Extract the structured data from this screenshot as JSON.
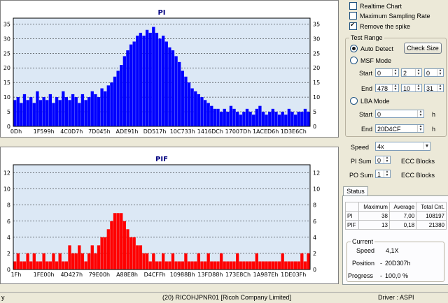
{
  "pi_chart": {
    "title": "PI",
    "y_ticks": [
      "0",
      "5",
      "10",
      "15",
      "20",
      "25",
      "30",
      "35"
    ],
    "x_ticks": [
      "0Dh",
      "1F599h",
      "4C0D7h",
      "7D045h",
      "ADE91h",
      "DD517h",
      "10C733h",
      "1416DCh",
      "17007Dh",
      "1ACED6h",
      "1D3E6Ch"
    ],
    "color": "#0000ff"
  },
  "pif_chart": {
    "title": "PIF",
    "y_ticks": [
      "0",
      "2",
      "4",
      "6",
      "8",
      "10",
      "12"
    ],
    "x_ticks": [
      "1Fh",
      "1FE00h",
      "4D427h",
      "79E00h",
      "A88E8h",
      "D4CFFh",
      "10988Bh",
      "13FD88h",
      "173E8Ch",
      "1A987Eh",
      "1DE03Fh"
    ],
    "color": "#ff0000"
  },
  "chart_data": [
    {
      "type": "bar",
      "title": "PI",
      "x_ticks": [
        "0Dh",
        "1F599h",
        "4C0D7h",
        "7D045h",
        "ADE91h",
        "DD517h",
        "10C733h",
        "1416DCh",
        "17007Dh",
        "1ACED6h",
        "1D3E6Ch"
      ],
      "ylim": [
        0,
        37
      ],
      "series": [
        {
          "values": [
            9,
            10,
            8,
            11,
            9,
            10,
            8,
            12,
            9,
            10,
            9,
            11,
            8,
            10,
            9,
            12,
            10,
            9,
            11,
            10,
            8,
            11,
            9,
            10,
            12,
            11,
            10,
            13,
            12,
            14,
            15,
            17,
            19,
            21,
            24,
            26,
            28,
            29,
            31,
            32,
            31,
            33,
            32,
            34,
            32,
            30,
            31,
            29,
            27,
            26,
            24,
            22,
            19,
            17,
            15,
            13,
            12,
            11,
            10,
            9,
            8,
            7,
            6,
            6,
            5,
            6,
            5,
            7,
            6,
            5,
            4,
            5,
            6,
            5,
            4,
            6,
            7,
            5,
            4,
            5,
            6,
            5,
            4,
            5,
            4,
            6,
            5,
            4,
            5,
            5,
            6,
            5
          ]
        }
      ]
    },
    {
      "type": "bar",
      "title": "PIF",
      "x_ticks": [
        "1Fh",
        "1FE00h",
        "4D427h",
        "79E00h",
        "A88E8h",
        "D4CFFh",
        "10988Bh",
        "13FD88h",
        "173E8Ch",
        "1A987Eh",
        "1DE03Fh"
      ],
      "ylim": [
        0,
        13
      ],
      "series": [
        {
          "values": [
            1,
            2,
            1,
            1,
            2,
            1,
            2,
            1,
            1,
            2,
            1,
            1,
            2,
            1,
            2,
            1,
            1,
            3,
            2,
            2,
            3,
            2,
            1,
            2,
            3,
            2,
            3,
            4,
            4,
            5,
            6,
            7,
            7,
            7,
            6,
            5,
            4,
            4,
            3,
            3,
            2,
            2,
            1,
            2,
            1,
            1,
            2,
            1,
            1,
            2,
            1,
            1,
            1,
            2,
            1,
            1,
            1,
            2,
            1,
            1,
            2,
            1,
            1,
            1,
            2,
            1,
            1,
            1,
            1,
            2,
            1,
            1,
            1,
            1,
            1,
            2,
            1,
            1,
            1,
            1,
            1,
            1,
            1,
            2,
            1,
            1,
            1,
            1,
            1,
            2,
            1,
            2
          ]
        }
      ]
    }
  ],
  "options": {
    "realtime_chart": "Realtime Chart",
    "max_sampling": "Maximum Sampling Rate",
    "remove_spike": "Remove the spike",
    "test_range": "Test Range",
    "auto_detect": "Auto Detect",
    "check_size": "Check Size",
    "msf_mode": "MSF Mode",
    "start": "Start",
    "end": "End",
    "start_vals": [
      "0",
      "2",
      "0"
    ],
    "end_vals": [
      "478",
      "10",
      "31"
    ],
    "lba_mode": "LBA Mode",
    "lba_start": "0",
    "lba_end": "20D4CF",
    "h": "h",
    "speed_label": "Speed",
    "speed_value": "4x",
    "pi_sum_label": "PI Sum",
    "pi_sum_val": "0",
    "po_sum_label": "PO Sum",
    "po_sum_val": "1",
    "ecc_blocks": "ECC Blocks"
  },
  "status": {
    "tab": "Status",
    "headers": [
      "Maximum",
      "Average",
      "Total Cnt."
    ],
    "rows": [
      {
        "name": "PI",
        "max": "38",
        "avg": "7,00",
        "total": "108197"
      },
      {
        "name": "PIF",
        "max": "13",
        "avg": "0,18",
        "total": "21380"
      }
    ],
    "current": "Current",
    "speed_label": "Speed",
    "speed": "4,1X",
    "position_label": "Position",
    "position": "20D307h",
    "progress_label": "Progress",
    "progress": "100,0 %"
  },
  "statusbar": {
    "left": "y",
    "device": "(20) RICOHJPNR01 [Ricoh Company Limited]",
    "driver": "Driver : ASPI"
  }
}
